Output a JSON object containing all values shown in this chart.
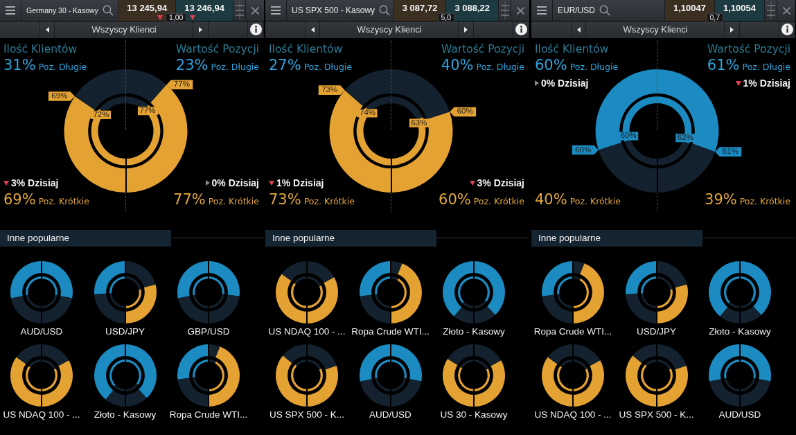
{
  "chart_data": [
    {
      "type": "other",
      "title": "Germany 30 - Kasowy",
      "subtitle": "Wszyscy Klienci",
      "annotations": [
        "13 245,94",
        "1,00",
        "13 246,94"
      ]
    },
    {
      "type": "donut",
      "categories": [
        "Poz. Długie",
        "Poz. Krótkie",
        "Poz. Krótkie",
        "Poz. Długie"
      ],
      "series": [
        {
          "values": [
            23,
            77,
            69,
            31
          ],
          "colors": [
            "#13222e",
            "#e4a232",
            "#e4a232",
            "#13222e"
          ],
          "value_labels": [
            "23%",
            "77%",
            "69%",
            "31%"
          ]
        },
        {
          "values": [
            23,
            77,
            72,
            28
          ],
          "colors": [
            "#13222e",
            "#e4a232",
            "#e4a232",
            "#13222e"
          ],
          "value_labels": [
            null,
            "77%",
            "72%",
            null
          ]
        }
      ],
      "annotations": [
        "Ilość Klientów",
        "Wartość Pozycji",
        "3% Dzisiaj",
        "0% Dzisiaj"
      ]
    },
    {
      "type": "other",
      "title": "Inne popularne"
    },
    {
      "type": "donut",
      "title": "AUD/USD",
      "categories": [
        null,
        null,
        null,
        null
      ],
      "series": [
        {
          "values": [
            28,
            22,
            22,
            28
          ],
          "colors": [
            "#1b8bc2",
            "#13222e",
            "#13222e",
            "#1b8bc2"
          ]
        },
        {
          "values": [
            28,
            22,
            22,
            28
          ],
          "colors": [
            "#1b8bc2",
            "#13222e",
            "#13222e",
            "#1b8bc2"
          ]
        }
      ]
    },
    {
      "type": "donut",
      "title": "USD/JPY",
      "categories": [
        null,
        null,
        null,
        null
      ],
      "series": [
        {
          "values": [
            21,
            29,
            24,
            26
          ],
          "colors": [
            "#13222e",
            "#e4a232",
            "#13222e",
            "#1b8bc2"
          ]
        },
        {
          "values": [
            22,
            28,
            24,
            26
          ],
          "colors": [
            "#13222e",
            "#e4a232",
            "#13222e",
            "#1b8bc2"
          ]
        }
      ]
    },
    {
      "type": "donut",
      "title": "GBP/USD",
      "categories": [
        null,
        null,
        null,
        null
      ],
      "series": [
        {
          "values": [
            27,
            23,
            22,
            28
          ],
          "colors": [
            "#1b8bc2",
            "#13222e",
            "#13222e",
            "#1b8bc2"
          ]
        },
        {
          "values": [
            27,
            23,
            22,
            28
          ],
          "colors": [
            "#1b8bc2",
            "#13222e",
            "#13222e",
            "#1b8bc2"
          ]
        }
      ]
    },
    {
      "type": "donut",
      "title": "US NDAQ 100 - ...",
      "categories": [
        null,
        null,
        null,
        null
      ],
      "series": [
        {
          "values": [
            17,
            33,
            35,
            15
          ],
          "colors": [
            "#13222e",
            "#e4a232",
            "#e4a232",
            "#13222e"
          ]
        },
        {
          "values": [
            18,
            32,
            35,
            15
          ],
          "colors": [
            "#13222e",
            "#e4a232",
            "#e4a232",
            "#13222e"
          ]
        }
      ]
    },
    {
      "type": "donut",
      "title": "Złoto - Kasowy",
      "categories": [
        null,
        null,
        null,
        null
      ],
      "series": [
        {
          "values": [
            38,
            12,
            11,
            39
          ],
          "colors": [
            "#1b8bc2",
            "#13222e",
            "#13222e",
            "#1b8bc2"
          ]
        },
        {
          "values": [
            35,
            15,
            13,
            37
          ],
          "colors": [
            "#1b8bc2",
            "#13222e",
            "#13222e",
            "#1b8bc2"
          ]
        }
      ]
    },
    {
      "type": "donut",
      "title": "Ropa Crude WTI...",
      "categories": [
        null,
        null,
        null,
        null
      ],
      "series": [
        {
          "values": [
            6,
            44,
            23,
            27
          ],
          "colors": [
            "#13222e",
            "#e4a232",
            "#13222e",
            "#1b8bc2"
          ]
        },
        {
          "values": [
            8,
            42,
            23,
            27
          ],
          "colors": [
            "#13222e",
            "#e4a232",
            "#13222e",
            "#1b8bc2"
          ]
        }
      ]
    },
    {
      "type": "other",
      "title": "US SPX 500 - Kasowy",
      "subtitle": "Wszyscy Klienci",
      "annotations": [
        "3 087,72",
        "5,0",
        "3 088,22"
      ]
    },
    {
      "type": "donut",
      "categories": [
        "Poz. Długie",
        "Poz. Krótkie",
        "Poz. Krótkie",
        "Poz. Długie"
      ],
      "series": [
        {
          "values": [
            40,
            60,
            73,
            27
          ],
          "colors": [
            "#13222e",
            "#e4a232",
            "#e4a232",
            "#13222e"
          ],
          "value_labels": [
            "40%",
            "60%",
            "73%",
            "27%"
          ]
        },
        {
          "values": [
            37,
            63,
            74,
            26
          ],
          "colors": [
            "#13222e",
            "#e4a232",
            "#e4a232",
            "#13222e"
          ],
          "value_labels": [
            null,
            "63%",
            "74%",
            null
          ]
        }
      ],
      "annotations": [
        "Ilość Klientów",
        "Wartość Pozycji",
        "1% Dzisiaj",
        "3% Dzisiaj"
      ]
    },
    {
      "type": "other",
      "title": "Inne popularne"
    },
    {
      "type": "donut",
      "title": "US NDAQ 100 - ...",
      "categories": [
        null,
        null,
        null,
        null
      ],
      "series": [
        {
          "values": [
            17,
            33,
            35,
            15
          ],
          "colors": [
            "#13222e",
            "#e4a232",
            "#e4a232",
            "#13222e"
          ]
        },
        {
          "values": [
            18,
            32,
            35,
            15
          ],
          "colors": [
            "#13222e",
            "#e4a232",
            "#e4a232",
            "#13222e"
          ]
        }
      ]
    },
    {
      "type": "donut",
      "title": "Ropa Crude WTI...",
      "categories": [
        null,
        null,
        null,
        null
      ],
      "series": [
        {
          "values": [
            6,
            44,
            23,
            27
          ],
          "colors": [
            "#13222e",
            "#e4a232",
            "#13222e",
            "#1b8bc2"
          ]
        },
        {
          "values": [
            8,
            42,
            23,
            27
          ],
          "colors": [
            "#13222e",
            "#e4a232",
            "#13222e",
            "#1b8bc2"
          ]
        }
      ]
    },
    {
      "type": "donut",
      "title": "Złoto - Kasowy",
      "categories": [
        null,
        null,
        null,
        null
      ],
      "series": [
        {
          "values": [
            38,
            12,
            11,
            39
          ],
          "colors": [
            "#1b8bc2",
            "#13222e",
            "#13222e",
            "#1b8bc2"
          ]
        },
        {
          "values": [
            35,
            15,
            13,
            37
          ],
          "colors": [
            "#1b8bc2",
            "#13222e",
            "#13222e",
            "#1b8bc2"
          ]
        }
      ]
    },
    {
      "type": "donut",
      "title": "US SPX 500 - K...",
      "categories": [
        null,
        null,
        null,
        null
      ],
      "series": [
        {
          "values": [
            20,
            30,
            36,
            14
          ],
          "colors": [
            "#13222e",
            "#e4a232",
            "#e4a232",
            "#13222e"
          ]
        },
        {
          "values": [
            18,
            32,
            37,
            13
          ],
          "colors": [
            "#13222e",
            "#e4a232",
            "#e4a232",
            "#13222e"
          ]
        }
      ]
    },
    {
      "type": "donut",
      "title": "AUD/USD",
      "categories": [
        null,
        null,
        null,
        null
      ],
      "series": [
        {
          "values": [
            28,
            22,
            22,
            28
          ],
          "colors": [
            "#1b8bc2",
            "#13222e",
            "#13222e",
            "#1b8bc2"
          ]
        },
        {
          "values": [
            28,
            22,
            22,
            28
          ],
          "colors": [
            "#1b8bc2",
            "#13222e",
            "#13222e",
            "#1b8bc2"
          ]
        }
      ]
    },
    {
      "type": "donut",
      "title": "US 30 - Kasowy",
      "categories": [
        null,
        null,
        null,
        null
      ],
      "series": [
        {
          "values": [
            17,
            33,
            34,
            16
          ],
          "colors": [
            "#13222e",
            "#e4a232",
            "#e4a232",
            "#13222e"
          ]
        },
        {
          "values": [
            18,
            32,
            34,
            16
          ],
          "colors": [
            "#13222e",
            "#e4a232",
            "#e4a232",
            "#13222e"
          ]
        }
      ]
    },
    {
      "type": "other",
      "title": "EUR/USD",
      "subtitle": "Wszyscy Klienci",
      "annotations": [
        "1,10047",
        "0,7",
        "1,10054"
      ]
    },
    {
      "type": "donut",
      "categories": [
        "Poz. Długie",
        "Poz. Krótkie",
        "Poz. Krótkie",
        "Poz. Długie"
      ],
      "series": [
        {
          "values": [
            61,
            39,
            40,
            60
          ],
          "colors": [
            "#1b8bc2",
            "#13222e",
            "#13222e",
            "#1b8bc2"
          ],
          "value_labels": [
            "61%",
            "39%",
            "40%",
            "60%"
          ]
        },
        {
          "values": [
            62,
            38,
            40,
            60
          ],
          "colors": [
            "#1b8bc2",
            "#13222e",
            "#13222e",
            "#1b8bc2"
          ],
          "value_labels": [
            "62%",
            null,
            null,
            "60%"
          ]
        }
      ],
      "annotations": [
        "Ilość Klientów",
        "Wartość Pozycji",
        "0% Dzisiaj",
        "1% Dzisiaj"
      ]
    },
    {
      "type": "other",
      "title": "Inne popularne"
    },
    {
      "type": "donut",
      "title": "Ropa Crude WTI...",
      "categories": [
        null,
        null,
        null,
        null
      ],
      "series": [
        {
          "values": [
            6,
            44,
            23,
            27
          ],
          "colors": [
            "#13222e",
            "#e4a232",
            "#13222e",
            "#1b8bc2"
          ]
        },
        {
          "values": [
            8,
            42,
            23,
            27
          ],
          "colors": [
            "#13222e",
            "#e4a232",
            "#13222e",
            "#1b8bc2"
          ]
        }
      ]
    },
    {
      "type": "donut",
      "title": "USD/JPY",
      "categories": [
        null,
        null,
        null,
        null
      ],
      "series": [
        {
          "values": [
            21,
            29,
            24,
            26
          ],
          "colors": [
            "#13222e",
            "#e4a232",
            "#13222e",
            "#1b8bc2"
          ]
        },
        {
          "values": [
            22,
            28,
            24,
            26
          ],
          "colors": [
            "#13222e",
            "#e4a232",
            "#13222e",
            "#1b8bc2"
          ]
        }
      ]
    },
    {
      "type": "donut",
      "title": "Złoto - Kasowy",
      "categories": [
        null,
        null,
        null,
        null
      ],
      "series": [
        {
          "values": [
            38,
            12,
            11,
            39
          ],
          "colors": [
            "#1b8bc2",
            "#13222e",
            "#13222e",
            "#1b8bc2"
          ]
        },
        {
          "values": [
            35,
            15,
            13,
            37
          ],
          "colors": [
            "#1b8bc2",
            "#13222e",
            "#13222e",
            "#1b8bc2"
          ]
        }
      ]
    },
    {
      "type": "donut",
      "title": "US NDAQ 100 - ...",
      "categories": [
        null,
        null,
        null,
        null
      ],
      "series": [
        {
          "values": [
            17,
            33,
            35,
            15
          ],
          "colors": [
            "#13222e",
            "#e4a232",
            "#e4a232",
            "#13222e"
          ]
        },
        {
          "values": [
            18,
            32,
            35,
            15
          ],
          "colors": [
            "#13222e",
            "#e4a232",
            "#e4a232",
            "#13222e"
          ]
        }
      ]
    },
    {
      "type": "donut",
      "title": "US SPX 500 - K...",
      "categories": [
        null,
        null,
        null,
        null
      ],
      "series": [
        {
          "values": [
            20,
            30,
            36,
            14
          ],
          "colors": [
            "#13222e",
            "#e4a232",
            "#e4a232",
            "#13222e"
          ]
        },
        {
          "values": [
            18,
            32,
            37,
            13
          ],
          "colors": [
            "#13222e",
            "#e4a232",
            "#e4a232",
            "#13222e"
          ]
        }
      ]
    },
    {
      "type": "donut",
      "title": "AUD/USD",
      "categories": [
        null,
        null,
        null,
        null
      ],
      "series": [
        {
          "values": [
            28,
            22,
            22,
            28
          ],
          "colors": [
            "#1b8bc2",
            "#13222e",
            "#13222e",
            "#1b8bc2"
          ]
        },
        {
          "values": [
            28,
            22,
            22,
            28
          ],
          "colors": [
            "#1b8bc2",
            "#13222e",
            "#13222e",
            "#1b8bc2"
          ]
        }
      ]
    }
  ]
}
